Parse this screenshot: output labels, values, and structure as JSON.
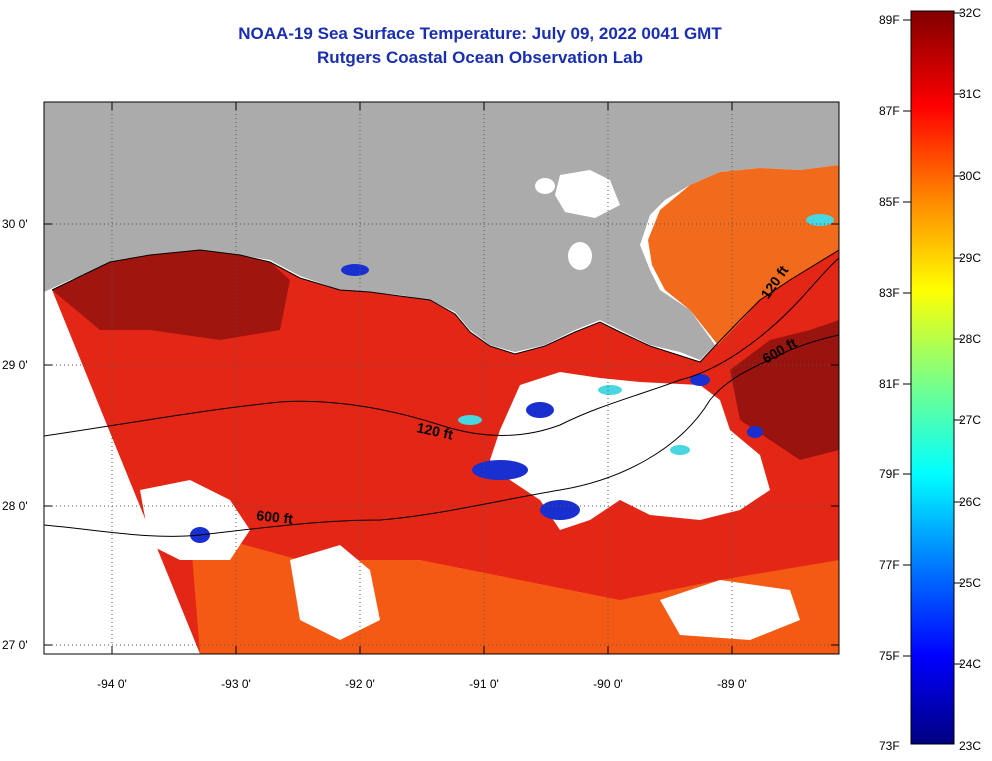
{
  "header": {
    "title": "NOAA-19 Sea Surface Temperature:  July 09, 2022 0041 GMT",
    "subtitle": "Rutgers Coastal Ocean Observation Lab"
  },
  "map": {
    "lon_labels": [
      "-94 0'",
      "-93 0'",
      "-92 0'",
      "-91 0'",
      "-90 0'",
      "-89 0'"
    ],
    "lat_labels": [
      "30 0'",
      "29 0'",
      "28 0'",
      "27 0'"
    ],
    "contour_labels": [
      "120 ft",
      "600 ft",
      "120 ft",
      "600 ft"
    ]
  },
  "colorbar": {
    "fahrenheit_labels": [
      "89F",
      "87F",
      "85F",
      "83F",
      "81F",
      "79F",
      "77F",
      "75F",
      "73F"
    ],
    "celsius_labels": [
      "32C",
      "31C",
      "30C",
      "29C",
      "28C",
      "27C",
      "26C",
      "25C",
      "24C",
      "23C"
    ],
    "colors": [
      "#000080",
      "#0000ff",
      "#0080ff",
      "#00ffff",
      "#80ff80",
      "#ffff00",
      "#ff8000",
      "#ff0000",
      "#800000"
    ]
  },
  "colors": {
    "title": "#1a2fb0",
    "land": "#ababab",
    "warm_sea": "#e02010",
    "hot_sea": "#8b0e0e",
    "cloud": "#ffffff"
  }
}
